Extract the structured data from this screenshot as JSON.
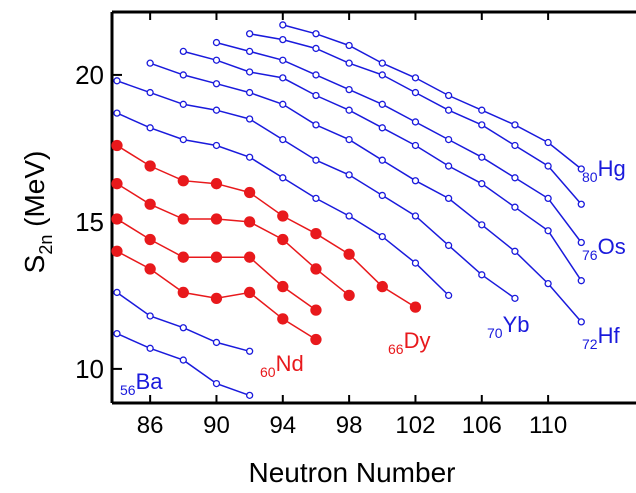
{
  "chart_data": {
    "type": "line",
    "xlabel": "Neutron Number",
    "ylabel": {
      "main": "S",
      "sub": "2n",
      "rest": " (MeV)"
    },
    "xlim": [
      83.7,
      115.3
    ],
    "ylim": [
      8.84,
      22.14
    ],
    "xticks": [
      86,
      90,
      94,
      98,
      102,
      106,
      110
    ],
    "yticks": [
      10,
      15,
      20
    ],
    "series": [
      {
        "label": {
          "z": "56",
          "symbol": "Ba"
        },
        "color": "#1a1adc",
        "x": [
          84,
          86,
          88,
          90,
          92
        ],
        "values": [
          11.2,
          10.7,
          10.3,
          9.5,
          9.1
        ]
      },
      {
        "color": "#1a1adc",
        "x": [
          84,
          86,
          88,
          90,
          92
        ],
        "values": [
          12.6,
          11.8,
          11.4,
          10.9,
          10.6
        ]
      },
      {
        "label": {
          "z": "60",
          "symbol": "Nd"
        },
        "color": "#e8191c",
        "x": [
          84,
          86,
          88,
          90,
          92,
          94,
          96
        ],
        "values": [
          14.0,
          13.4,
          12.6,
          12.4,
          12.6,
          11.7,
          11.0
        ]
      },
      {
        "color": "#e8191c",
        "x": [
          84,
          86,
          88,
          90,
          92,
          94,
          96
        ],
        "values": [
          15.1,
          14.4,
          13.8,
          13.8,
          13.8,
          12.8,
          12.0
        ]
      },
      {
        "color": "#e8191c",
        "x": [
          84,
          86,
          88,
          90,
          92,
          94,
          96,
          98
        ],
        "values": [
          16.3,
          15.6,
          15.1,
          15.1,
          15.0,
          14.4,
          13.4,
          12.5
        ]
      },
      {
        "label": {
          "z": "66",
          "symbol": "Dy"
        },
        "color": "#e8191c",
        "x": [
          84,
          86,
          88,
          90,
          92,
          94,
          96,
          98,
          100,
          102
        ],
        "values": [
          17.6,
          16.9,
          16.4,
          16.3,
          16.0,
          15.2,
          14.6,
          13.9,
          12.8,
          12.1
        ]
      },
      {
        "color": "#1a1adc",
        "x": [
          84,
          86,
          88,
          90,
          92,
          94,
          96,
          98,
          100,
          102,
          104
        ],
        "values": [
          18.7,
          18.2,
          17.8,
          17.6,
          17.2,
          16.5,
          15.8,
          15.2,
          14.5,
          13.6,
          12.5
        ]
      },
      {
        "label": {
          "z": "70",
          "symbol": "Yb"
        },
        "color": "#1a1adc",
        "x": [
          84,
          86,
          88,
          90,
          92,
          94,
          96,
          98,
          100,
          102,
          104,
          106,
          108
        ],
        "values": [
          19.8,
          19.4,
          19.0,
          18.8,
          18.5,
          17.8,
          17.1,
          16.6,
          15.9,
          15.2,
          14.2,
          13.2,
          12.4
        ]
      },
      {
        "label": {
          "z": "72",
          "symbol": "Hf"
        },
        "color": "#1a1adc",
        "x": [
          86,
          88,
          90,
          92,
          94,
          96,
          98,
          100,
          102,
          104,
          106,
          108,
          110,
          112
        ],
        "values": [
          20.4,
          20.0,
          19.7,
          19.4,
          19.0,
          18.3,
          17.8,
          17.1,
          16.4,
          15.8,
          14.9,
          14.0,
          12.9,
          11.6
        ]
      },
      {
        "color": "#1a1adc",
        "x": [
          88,
          90,
          92,
          94,
          96,
          98,
          100,
          102,
          104,
          106,
          108,
          110,
          112
        ],
        "values": [
          20.8,
          20.5,
          20.1,
          19.9,
          19.3,
          18.8,
          18.2,
          17.6,
          16.9,
          16.3,
          15.5,
          14.7,
          13.0
        ]
      },
      {
        "label": {
          "z": "76",
          "symbol": "Os"
        },
        "color": "#1a1adc",
        "x": [
          90,
          92,
          94,
          96,
          98,
          100,
          102,
          104,
          106,
          108,
          110,
          112
        ],
        "values": [
          21.1,
          20.8,
          20.5,
          20.0,
          19.5,
          19.0,
          18.4,
          17.8,
          17.2,
          16.5,
          15.8,
          14.3
        ]
      },
      {
        "color": "#1a1adc",
        "x": [
          92,
          94,
          96,
          98,
          100,
          102,
          104,
          106,
          108,
          110,
          112
        ],
        "values": [
          21.4,
          21.2,
          20.9,
          20.4,
          20.0,
          19.4,
          18.8,
          18.3,
          17.6,
          16.9,
          15.6
        ]
      },
      {
        "label": {
          "z": "80",
          "symbol": "Hg"
        },
        "color": "#1a1adc",
        "x": [
          94,
          96,
          98,
          100,
          102,
          104,
          106,
          108,
          110,
          112
        ],
        "values": [
          21.7,
          21.4,
          21.0,
          20.4,
          19.9,
          19.3,
          18.8,
          18.3,
          17.7,
          16.8
        ]
      }
    ]
  }
}
